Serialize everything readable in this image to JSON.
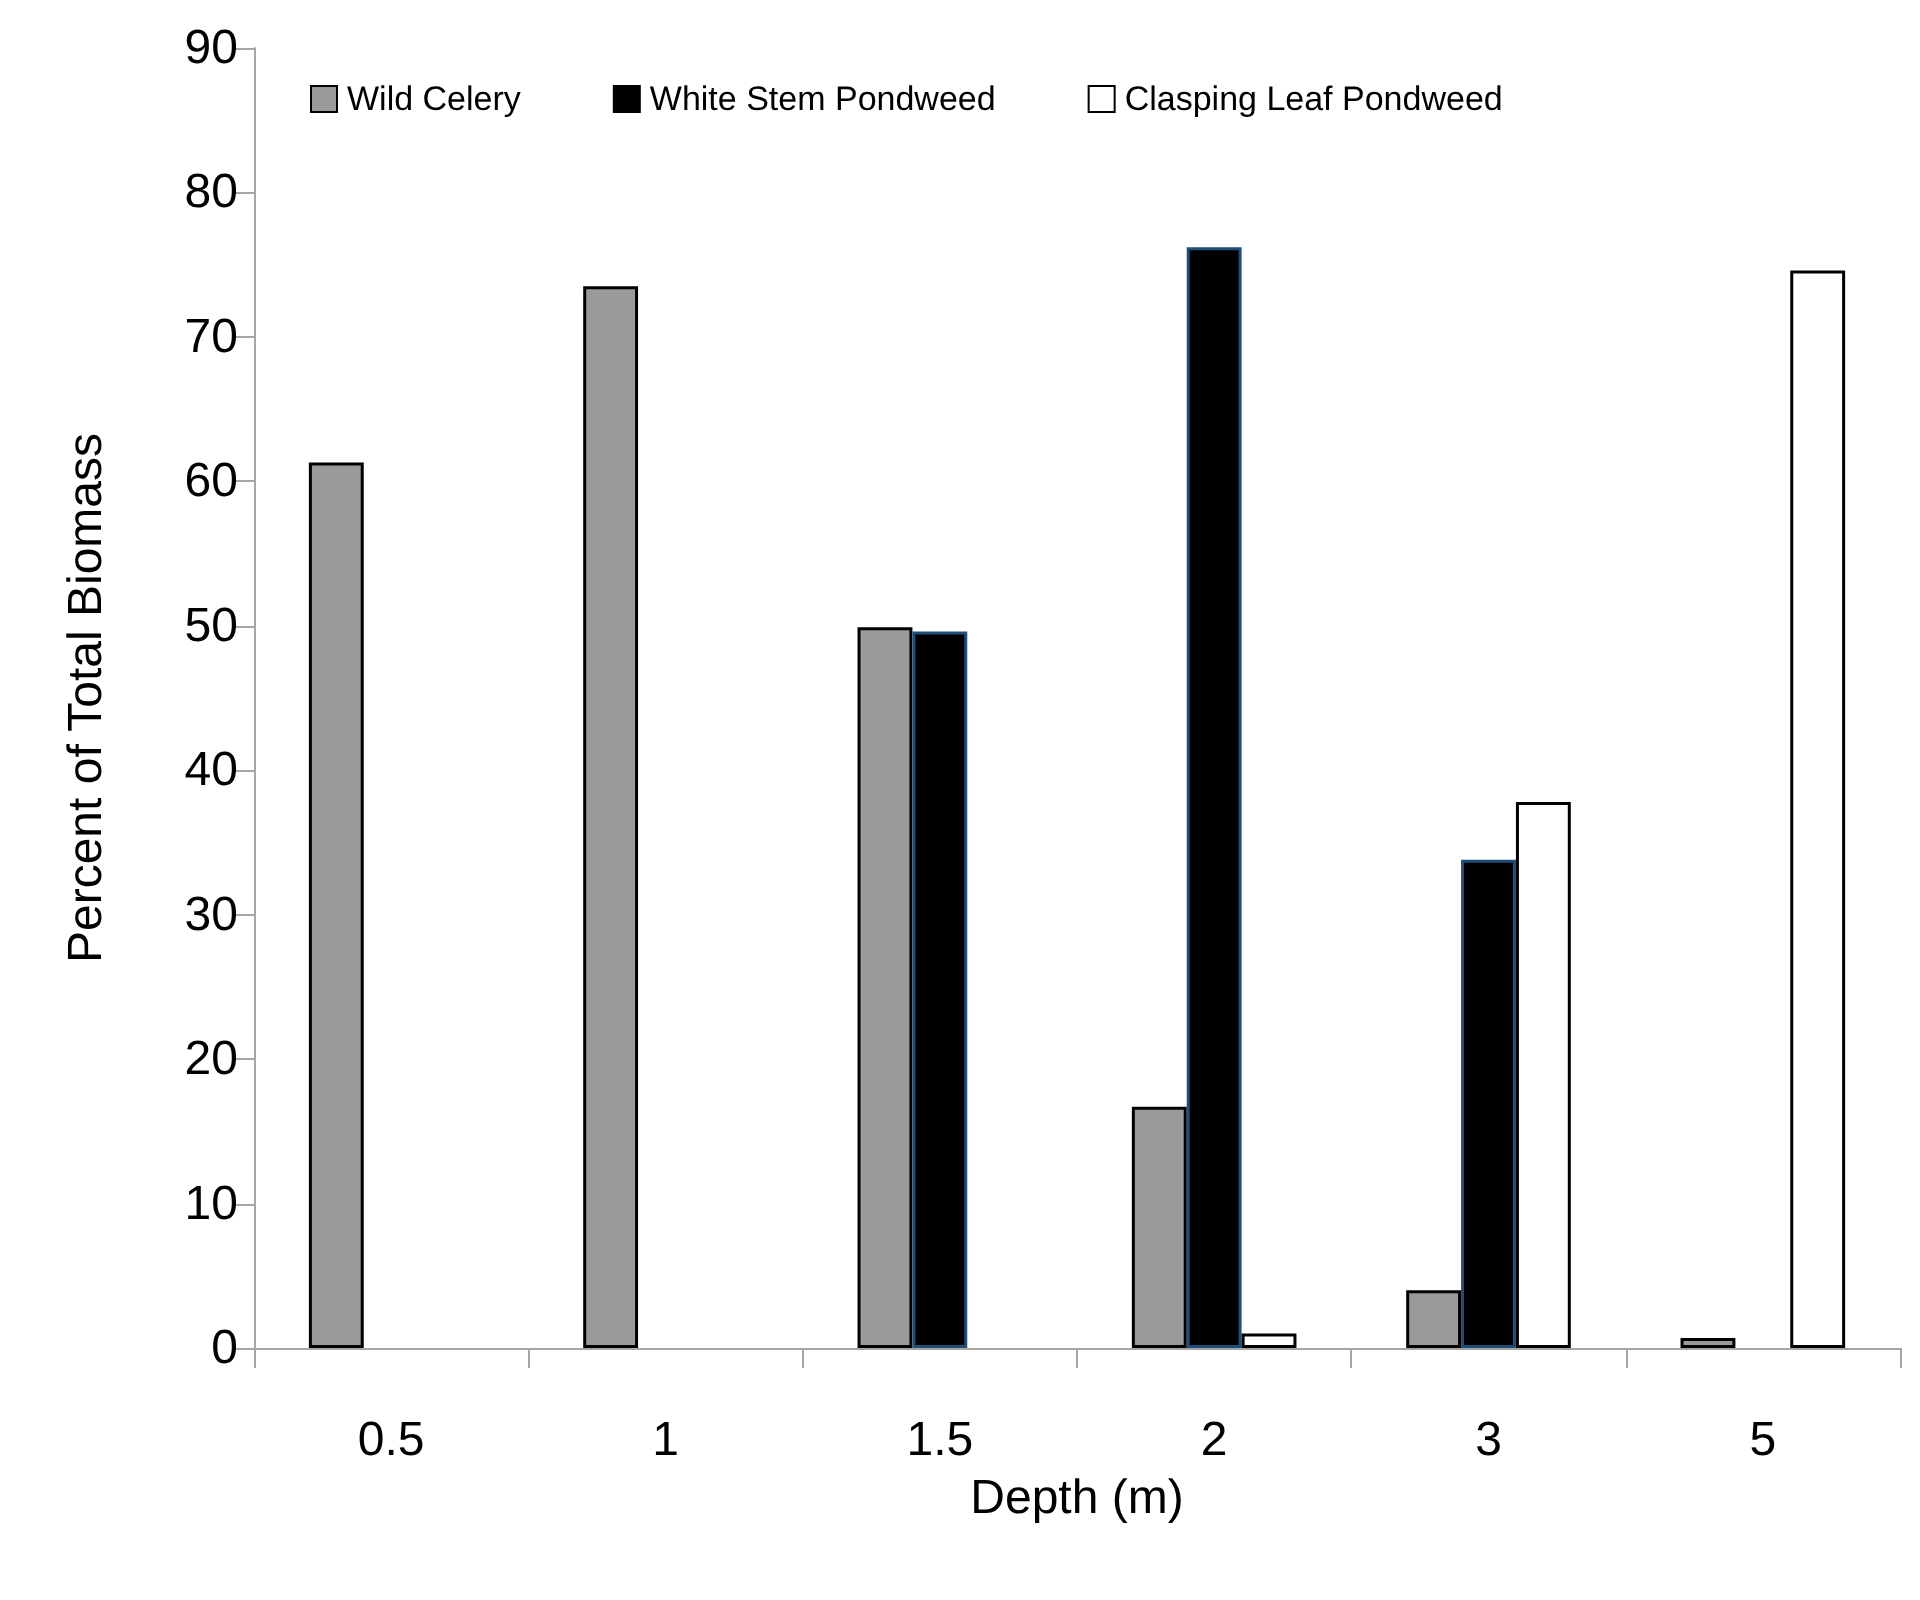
{
  "chart_data": {
    "type": "bar",
    "xlabel": "Depth (m)",
    "ylabel": "Percent of Total Biomass",
    "categories": [
      "0.5",
      "1",
      "1.5",
      "2",
      "3",
      "5"
    ],
    "series": [
      {
        "name": "Wild Celery",
        "color": "#9a9a9a",
        "values": [
          61.3,
          73.5,
          49.9,
          16.7,
          4.0,
          0.7
        ]
      },
      {
        "name": "White Stem Pondweed",
        "color": "#000000",
        "values": [
          null,
          null,
          49.6,
          76.2,
          33.8,
          null
        ]
      },
      {
        "name": "Clasping Leaf Pondweed",
        "color": "#ffffff",
        "values": [
          null,
          null,
          null,
          1.0,
          37.8,
          74.6
        ]
      }
    ],
    "ylim": [
      0,
      90
    ],
    "yticks": [
      0,
      10,
      20,
      30,
      40,
      50,
      60,
      70,
      80,
      90
    ],
    "grid": false,
    "legend": "top"
  }
}
